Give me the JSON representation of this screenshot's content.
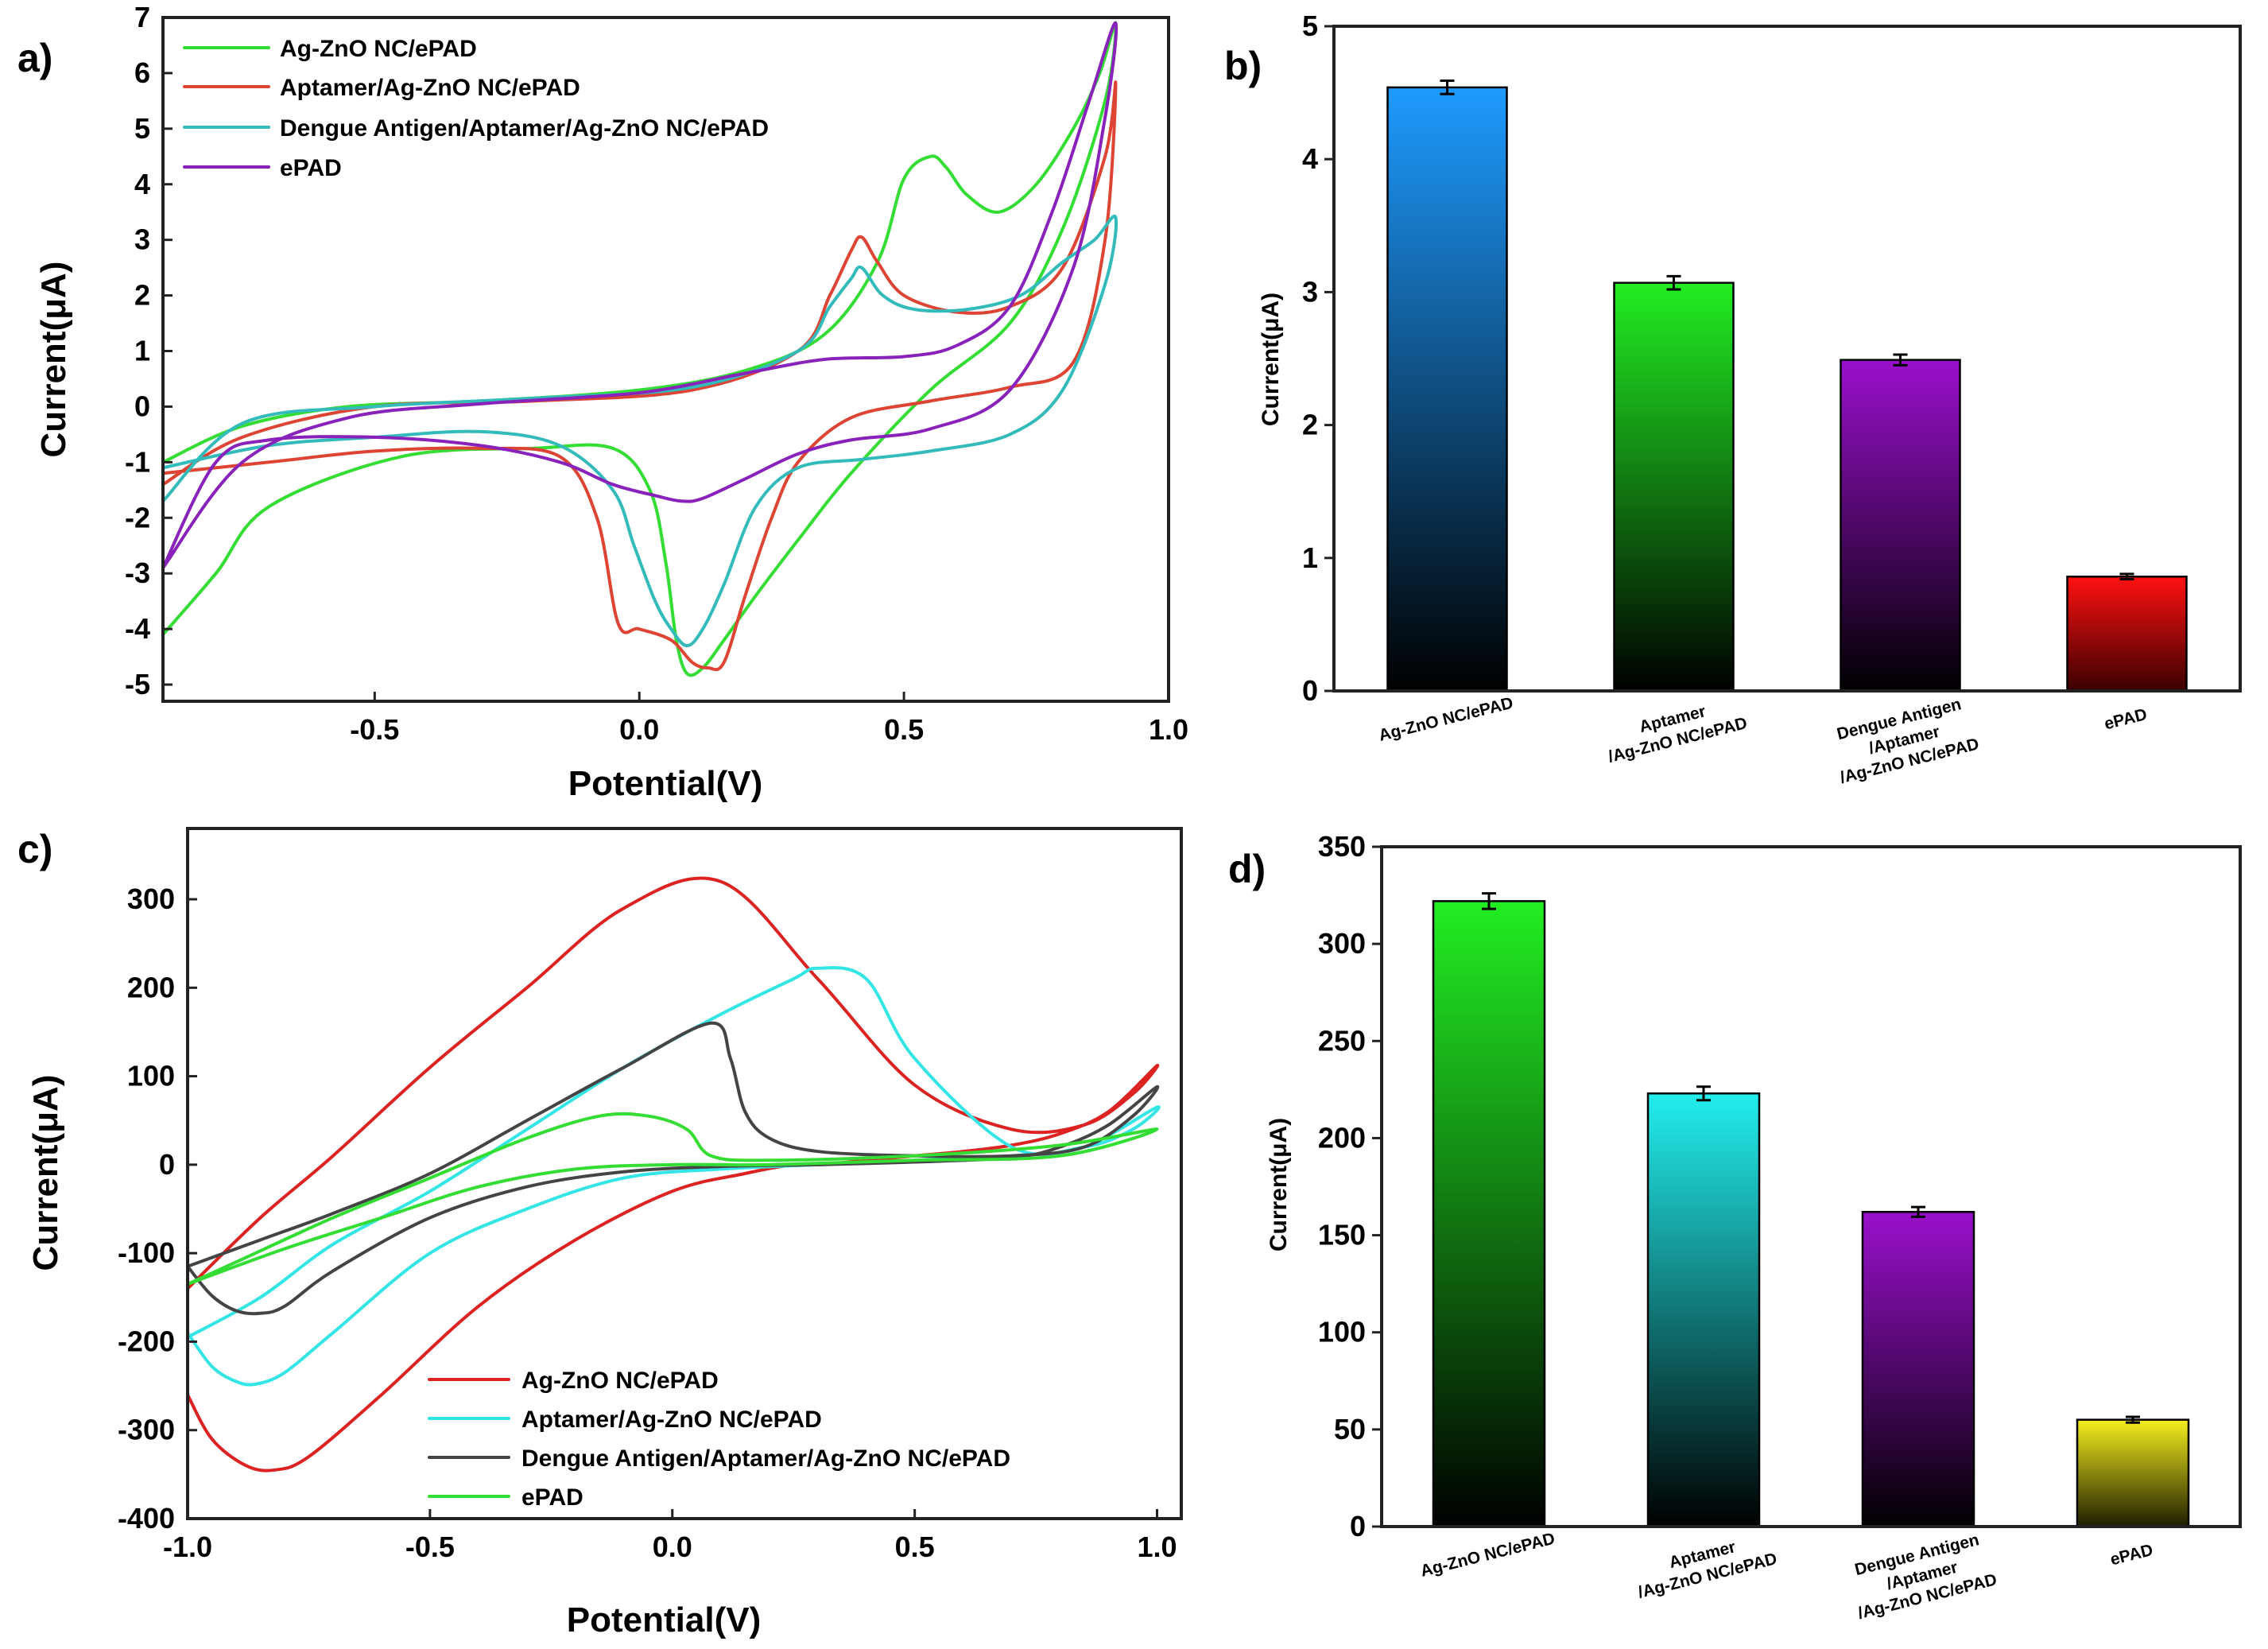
{
  "chart_data": [
    {
      "id": "a",
      "panel_label": "a)",
      "type": "line",
      "xlabel": "Potential(V)",
      "ylabel": "Current(μA)",
      "xlim": [
        -0.9,
        1.0
      ],
      "ylim": [
        -5.3,
        7
      ],
      "xticks": [
        -0.5,
        0.0,
        0.5,
        1.0
      ],
      "xtick_labels": [
        "-0.5",
        "0.0",
        "0.5",
        "1.0"
      ],
      "yticks": [
        -5,
        -4,
        -3,
        -2,
        -1,
        0,
        1,
        2,
        3,
        4,
        5,
        6,
        7
      ],
      "ytick_labels": [
        "-5",
        "-4",
        "-3",
        "-2",
        "-1",
        "0",
        "1",
        "2",
        "3",
        "4",
        "5",
        "6",
        "7"
      ],
      "legend_position": "top-left",
      "series": [
        {
          "name": "Ag-ZnO NC/ePAD",
          "color": "#33dd33",
          "x": [
            -0.9,
            -0.75,
            -0.55,
            -0.3,
            0.0,
            0.2,
            0.35,
            0.45,
            0.5,
            0.55,
            0.58,
            0.62,
            0.68,
            0.75,
            0.82,
            0.87,
            0.9,
            0.88,
            0.8,
            0.7,
            0.55,
            0.4,
            0.3,
            0.22,
            0.16,
            0.12,
            0.09,
            0.07,
            0.05,
            0.02,
            -0.05,
            -0.2,
            -0.45,
            -0.7,
            -0.8,
            -0.9
          ],
          "y": [
            -1.0,
            -0.35,
            0.0,
            0.1,
            0.3,
            0.65,
            1.3,
            2.6,
            4.1,
            4.5,
            4.3,
            3.8,
            3.5,
            4.0,
            5.0,
            6.0,
            6.9,
            5.5,
            3.2,
            1.5,
            0.3,
            -1.2,
            -2.4,
            -3.4,
            -4.2,
            -4.7,
            -4.8,
            -4.2,
            -2.8,
            -1.5,
            -0.75,
            -0.75,
            -0.9,
            -1.8,
            -3.0,
            -4.1
          ]
        },
        {
          "name": "Aptamer/Ag-ZnO NC/ePAD",
          "color": "#dd4433",
          "x": [
            -0.9,
            -0.75,
            -0.5,
            -0.2,
            0.1,
            0.3,
            0.36,
            0.4,
            0.42,
            0.45,
            0.5,
            0.6,
            0.7,
            0.8,
            0.88,
            0.9,
            0.88,
            0.82,
            0.7,
            0.55,
            0.4,
            0.3,
            0.25,
            0.2,
            0.16,
            0.13,
            0.1,
            0.06,
            0.0,
            -0.04,
            -0.08,
            -0.15,
            -0.3,
            -0.5,
            -0.7,
            -0.9
          ],
          "y": [
            -1.4,
            -0.55,
            0.0,
            0.1,
            0.3,
            1.0,
            2.0,
            2.8,
            3.05,
            2.6,
            2.0,
            1.7,
            1.8,
            2.5,
            4.5,
            5.8,
            3.0,
            0.8,
            0.35,
            0.1,
            -0.2,
            -1.0,
            -2.0,
            -3.4,
            -4.6,
            -4.7,
            -4.6,
            -4.2,
            -4.0,
            -3.9,
            -2.0,
            -0.9,
            -0.75,
            -0.8,
            -1.0,
            -1.2
          ]
        },
        {
          "name": "Dengue Antigen/Aptamer/Ag-ZnO NC/ePAD",
          "color": "#33bbbb",
          "x": [
            -0.9,
            -0.75,
            -0.5,
            -0.2,
            0.1,
            0.3,
            0.36,
            0.4,
            0.42,
            0.46,
            0.52,
            0.62,
            0.72,
            0.8,
            0.86,
            0.9,
            0.88,
            0.8,
            0.7,
            0.55,
            0.42,
            0.3,
            0.22,
            0.16,
            0.12,
            0.09,
            0.06,
            0.03,
            -0.01,
            -0.05,
            -0.15,
            -0.3,
            -0.5,
            -0.7,
            -0.9
          ],
          "y": [
            -1.7,
            -0.3,
            0.0,
            0.15,
            0.35,
            1.0,
            1.8,
            2.3,
            2.5,
            2.0,
            1.75,
            1.75,
            2.0,
            2.6,
            3.0,
            3.4,
            2.2,
            0.3,
            -0.5,
            -0.8,
            -0.95,
            -1.1,
            -1.8,
            -3.2,
            -4.0,
            -4.3,
            -4.0,
            -3.5,
            -2.5,
            -1.5,
            -0.7,
            -0.45,
            -0.55,
            -0.7,
            -1.1
          ]
        },
        {
          "name": "ePAD",
          "color": "#8822bb",
          "x": [
            -0.9,
            -0.75,
            -0.55,
            -0.3,
            0.0,
            0.2,
            0.35,
            0.5,
            0.6,
            0.7,
            0.78,
            0.85,
            0.9,
            0.88,
            0.82,
            0.7,
            0.55,
            0.4,
            0.3,
            0.2,
            0.12,
            0.08,
            0.03,
            -0.05,
            -0.15,
            -0.3,
            -0.5,
            -0.7,
            -0.8,
            -0.9
          ],
          "y": [
            -2.9,
            -1.0,
            -0.2,
            0.05,
            0.25,
            0.6,
            0.85,
            0.9,
            1.1,
            1.8,
            3.5,
            5.5,
            6.9,
            5.2,
            2.5,
            0.3,
            -0.4,
            -0.6,
            -0.85,
            -1.3,
            -1.65,
            -1.7,
            -1.6,
            -1.4,
            -1.0,
            -0.7,
            -0.55,
            -0.6,
            -1.0,
            -2.9
          ]
        }
      ]
    },
    {
      "id": "b",
      "panel_label": "b)",
      "type": "bar",
      "ylabel": "Current(μA)",
      "ylim": [
        0,
        5
      ],
      "yticks": [
        0,
        1,
        2,
        3,
        4,
        5
      ],
      "ytick_labels": [
        "0",
        "1",
        "2",
        "3",
        "4",
        "5"
      ],
      "categories": [
        [
          "Ag-ZnO NC/ePAD"
        ],
        [
          "Aptamer",
          "/Ag-ZnO NC/ePAD"
        ],
        [
          "Dengue Antigen",
          "/Aptamer",
          "/Ag-ZnO NC/ePAD"
        ],
        [
          "ePAD"
        ]
      ],
      "values": [
        4.54,
        3.07,
        2.49,
        0.86
      ],
      "errors": [
        0.05,
        0.05,
        0.04,
        0.02
      ],
      "colors": [
        "#1e9bff",
        "#22ee22",
        "#9a10cc",
        "#ff1111"
      ]
    },
    {
      "id": "c",
      "panel_label": "c)",
      "type": "line",
      "xlabel": "Potential(V)",
      "ylabel": "Current(μA)",
      "xlim": [
        -1.0,
        1.05
      ],
      "ylim": [
        -400,
        380
      ],
      "xticks": [
        -1.0,
        -0.5,
        0.0,
        0.5,
        1.0
      ],
      "xtick_labels": [
        "-1.0",
        "-0.5",
        "0.0",
        "0.5",
        "1.0"
      ],
      "yticks": [
        -400,
        -300,
        -200,
        -100,
        0,
        100,
        200,
        300
      ],
      "ytick_labels": [
        "-400",
        "-300",
        "-200",
        "-100",
        "0",
        "100",
        "200",
        "300"
      ],
      "legend_position": "bottom-center",
      "series": [
        {
          "name": "Ag-ZnO NC/ePAD",
          "color": "#dd2222",
          "x": [
            -1.0,
            -0.95,
            -0.88,
            -0.82,
            -0.75,
            -0.6,
            -0.4,
            -0.2,
            0.0,
            0.15,
            0.25,
            0.3,
            0.4,
            0.5,
            0.6,
            0.7,
            0.8,
            0.9,
            1.0,
            0.95,
            0.85,
            0.7,
            0.5,
            0.3,
            0.1,
            -0.1,
            -0.3,
            -0.5,
            -0.7,
            -0.85,
            -1.0
          ],
          "y": [
            -260,
            -310,
            -340,
            -345,
            -330,
            -260,
            -160,
            -85,
            -30,
            -10,
            0,
            0,
            5,
            10,
            15,
            22,
            35,
            60,
            112,
            80,
            45,
            40,
            90,
            210,
            320,
            290,
            200,
            110,
            10,
            -60,
            -140
          ]
        },
        {
          "name": "Aptamer/Ag-ZnO NC/ePAD",
          "color": "#33e5e5",
          "x": [
            -1.0,
            -0.95,
            -0.9,
            -0.86,
            -0.8,
            -0.7,
            -0.5,
            -0.3,
            -0.1,
            0.1,
            0.3,
            0.5,
            0.7,
            0.85,
            1.0,
            0.95,
            0.85,
            0.7,
            0.5,
            0.4,
            0.3,
            0.25,
            0.1,
            -0.1,
            -0.3,
            -0.5,
            -0.7,
            -0.85,
            -1.0
          ],
          "y": [
            -190,
            -228,
            -245,
            -248,
            -235,
            -190,
            -100,
            -50,
            -15,
            -5,
            0,
            5,
            10,
            20,
            65,
            40,
            20,
            20,
            120,
            210,
            222,
            210,
            170,
            110,
            40,
            -30,
            -90,
            -150,
            -195
          ]
        },
        {
          "name": "Dengue Antigen/Aptamer/Ag-ZnO NC/ePAD",
          "color": "#444444",
          "x": [
            -1.0,
            -0.95,
            -0.9,
            -0.85,
            -0.8,
            -0.7,
            -0.5,
            -0.3,
            -0.1,
            0.1,
            0.3,
            0.5,
            0.7,
            0.8,
            0.9,
            1.0,
            0.95,
            0.85,
            0.7,
            0.5,
            0.3,
            0.2,
            0.15,
            0.12,
            0.08,
            -0.1,
            -0.3,
            -0.5,
            -0.7,
            -0.85,
            -1.0
          ],
          "y": [
            -115,
            -148,
            -165,
            -168,
            -160,
            -120,
            -60,
            -25,
            -8,
            -2,
            0,
            3,
            8,
            20,
            45,
            88,
            55,
            20,
            10,
            10,
            15,
            30,
            60,
            120,
            160,
            110,
            50,
            -10,
            -55,
            -85,
            -115
          ]
        },
        {
          "name": "ePAD",
          "color": "#33dd33",
          "x": [
            -1.0,
            -0.8,
            -0.6,
            -0.4,
            -0.2,
            0.0,
            0.2,
            0.5,
            0.8,
            1.0,
            0.8,
            0.5,
            0.2,
            0.08,
            0.03,
            -0.05,
            -0.15,
            -0.3,
            -0.5,
            -0.7,
            -0.9,
            -1.0
          ],
          "y": [
            -135,
            -95,
            -60,
            -25,
            -5,
            0,
            0,
            5,
            10,
            40,
            22,
            10,
            5,
            10,
            40,
            55,
            55,
            30,
            -15,
            -60,
            -110,
            -135
          ]
        }
      ]
    },
    {
      "id": "d",
      "panel_label": "d)",
      "type": "bar",
      "ylabel": "Current(μA)",
      "ylim": [
        0,
        350
      ],
      "yticks": [
        0,
        50,
        100,
        150,
        200,
        250,
        300,
        350
      ],
      "ytick_labels": [
        "0",
        "50",
        "100",
        "150",
        "200",
        "250",
        "300",
        "350"
      ],
      "categories": [
        [
          "Ag-ZnO NC/ePAD"
        ],
        [
          "Aptamer",
          "/Ag-ZnO NC/ePAD"
        ],
        [
          "Dengue Antigen",
          "/Aptamer",
          "/Ag-ZnO NC/ePAD"
        ],
        [
          "ePAD"
        ]
      ],
      "values": [
        322,
        223,
        162,
        55
      ],
      "errors": [
        4,
        3.5,
        2.5,
        1.5
      ],
      "colors": [
        "#22ee22",
        "#22eeee",
        "#9a10cc",
        "#f5ee1e"
      ]
    }
  ]
}
